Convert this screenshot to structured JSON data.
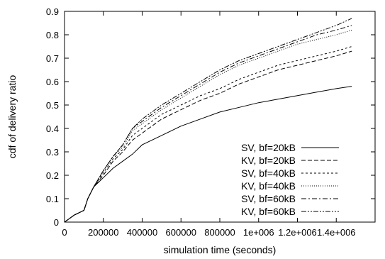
{
  "chart_data": {
    "type": "line",
    "xlabel": "simulation time (seconds)",
    "ylabel": "cdf of delivery ratio",
    "xlim": [
      0,
      1600000
    ],
    "ylim": [
      0,
      0.9
    ],
    "xticks": [
      0,
      200000,
      400000,
      600000,
      800000,
      1000000,
      1200000,
      1400000
    ],
    "xtick_labels": [
      "0",
      "200000",
      "400000",
      "600000",
      "800000",
      "1e+006",
      "1.2e+006",
      "1.4e+006"
    ],
    "yticks": [
      0,
      0.1,
      0.2,
      0.3,
      0.4,
      0.5,
      0.6,
      0.7,
      0.8,
      0.9
    ],
    "ytick_labels": [
      "0",
      "0.1",
      "0.2",
      "0.3",
      "0.4",
      "0.5",
      "0.6",
      "0.7",
      "0.8",
      "0.9"
    ],
    "grid": false,
    "legend_position": "bottom-right",
    "series": [
      {
        "name": "SV, bf=20kB",
        "dash": "solid",
        "x": [
          0,
          50000,
          100000,
          120000,
          150000,
          200000,
          250000,
          300000,
          350000,
          400000,
          500000,
          600000,
          700000,
          800000,
          900000,
          1000000,
          1100000,
          1200000,
          1300000,
          1400000,
          1480000
        ],
        "y": [
          0,
          0.03,
          0.05,
          0.1,
          0.15,
          0.19,
          0.23,
          0.26,
          0.29,
          0.33,
          0.37,
          0.41,
          0.44,
          0.47,
          0.49,
          0.51,
          0.525,
          0.54,
          0.555,
          0.57,
          0.58
        ]
      },
      {
        "name": "KV, bf=20kB",
        "dash": "dashed",
        "x": [
          0,
          50000,
          100000,
          120000,
          150000,
          200000,
          250000,
          300000,
          350000,
          400000,
          500000,
          600000,
          700000,
          800000,
          900000,
          1000000,
          1100000,
          1200000,
          1300000,
          1400000,
          1480000
        ],
        "y": [
          0,
          0.03,
          0.05,
          0.1,
          0.15,
          0.2,
          0.26,
          0.3,
          0.35,
          0.38,
          0.44,
          0.48,
          0.52,
          0.55,
          0.59,
          0.62,
          0.65,
          0.67,
          0.69,
          0.71,
          0.73
        ]
      },
      {
        "name": "SV, bf=40kB",
        "dash": "short-dashed",
        "x": [
          0,
          50000,
          100000,
          120000,
          150000,
          200000,
          250000,
          300000,
          350000,
          400000,
          500000,
          600000,
          700000,
          800000,
          900000,
          1000000,
          1100000,
          1200000,
          1300000,
          1400000,
          1480000
        ],
        "y": [
          0,
          0.03,
          0.05,
          0.1,
          0.15,
          0.21,
          0.27,
          0.31,
          0.37,
          0.4,
          0.46,
          0.5,
          0.54,
          0.57,
          0.61,
          0.64,
          0.67,
          0.69,
          0.71,
          0.73,
          0.75
        ]
      },
      {
        "name": "KV, bf=40kB",
        "dash": "dotted",
        "x": [
          0,
          50000,
          100000,
          120000,
          150000,
          200000,
          250000,
          300000,
          350000,
          400000,
          500000,
          600000,
          700000,
          800000,
          900000,
          1000000,
          1100000,
          1200000,
          1300000,
          1400000,
          1480000
        ],
        "y": [
          0,
          0.03,
          0.05,
          0.1,
          0.15,
          0.22,
          0.28,
          0.32,
          0.39,
          0.42,
          0.48,
          0.53,
          0.58,
          0.63,
          0.67,
          0.7,
          0.73,
          0.76,
          0.78,
          0.8,
          0.82
        ]
      },
      {
        "name": "SV, bf=60kB",
        "dash": "dash-dot",
        "x": [
          0,
          50000,
          100000,
          120000,
          150000,
          200000,
          250000,
          300000,
          350000,
          400000,
          500000,
          600000,
          700000,
          800000,
          900000,
          1000000,
          1100000,
          1200000,
          1300000,
          1400000,
          1480000
        ],
        "y": [
          0,
          0.03,
          0.05,
          0.1,
          0.15,
          0.22,
          0.28,
          0.33,
          0.4,
          0.43,
          0.49,
          0.54,
          0.59,
          0.64,
          0.68,
          0.71,
          0.74,
          0.77,
          0.8,
          0.82,
          0.84
        ]
      },
      {
        "name": "KV, bf=60kB",
        "dash": "dash-dot-dot",
        "x": [
          0,
          50000,
          100000,
          120000,
          150000,
          200000,
          250000,
          300000,
          350000,
          400000,
          500000,
          600000,
          700000,
          800000,
          900000,
          1000000,
          1100000,
          1200000,
          1300000,
          1400000,
          1480000
        ],
        "y": [
          0,
          0.03,
          0.05,
          0.1,
          0.15,
          0.22,
          0.28,
          0.33,
          0.4,
          0.44,
          0.5,
          0.55,
          0.6,
          0.65,
          0.69,
          0.72,
          0.75,
          0.78,
          0.81,
          0.84,
          0.87
        ]
      }
    ]
  }
}
